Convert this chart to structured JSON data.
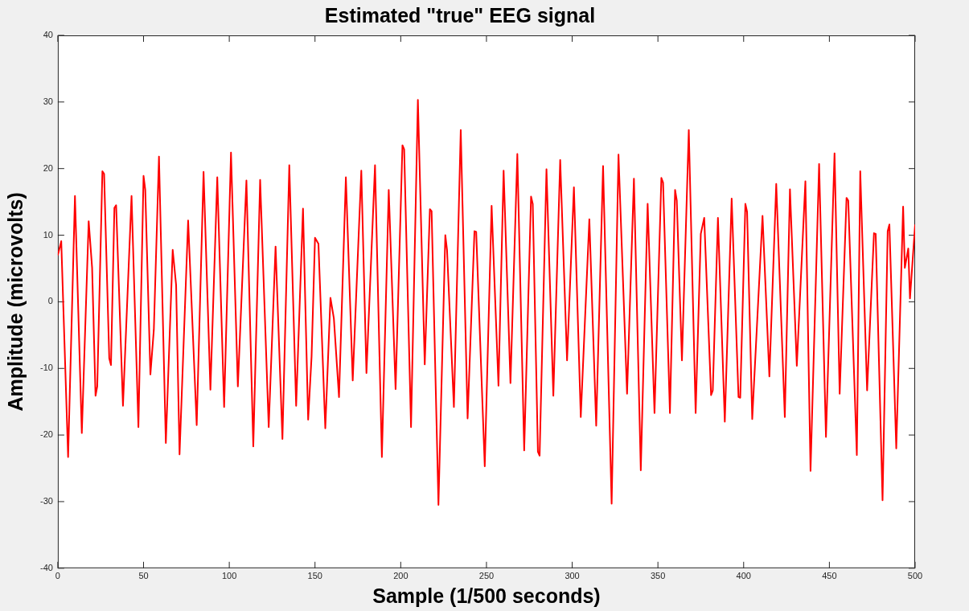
{
  "chart_data": {
    "type": "line",
    "title": "Estimated \"true\" EEG signal",
    "xlabel": "Sample (1/500 seconds)",
    "ylabel": "Amplitude (microvolts)",
    "xlim": [
      0,
      500
    ],
    "xticks": [
      0,
      50,
      100,
      150,
      200,
      250,
      300,
      350,
      400,
      450,
      500
    ],
    "ylim": [
      -40,
      40
    ],
    "yticks": [
      -40,
      -30,
      -20,
      -10,
      0,
      10,
      20,
      30,
      40
    ],
    "grid": false,
    "legend": false,
    "series": [
      {
        "color": "#ff0000",
        "x": [
          0,
          2,
          6,
          10,
          14,
          18,
          20,
          22,
          23,
          26,
          27,
          30,
          31,
          33,
          34,
          38,
          43,
          47,
          50,
          51,
          54,
          56,
          59,
          63,
          67,
          69,
          71,
          76,
          81,
          85,
          89,
          93,
          97,
          101,
          105,
          110,
          114,
          118,
          123,
          127,
          131,
          135,
          139,
          143,
          146,
          148,
          150,
          152,
          156,
          159,
          161,
          164,
          168,
          172,
          177,
          180,
          185,
          189,
          193,
          197,
          201,
          202,
          206,
          210,
          214,
          217,
          218,
          222,
          226,
          227,
          231,
          235,
          239,
          243,
          244,
          249,
          253,
          257,
          260,
          264,
          268,
          272,
          276,
          277,
          280,
          281,
          285,
          289,
          293,
          297,
          301,
          305,
          310,
          314,
          318,
          323,
          327,
          332,
          336,
          340,
          344,
          348,
          352,
          353,
          357,
          360,
          361,
          364,
          368,
          372,
          375,
          377,
          381,
          382,
          385,
          389,
          393,
          397,
          398,
          401,
          402,
          405,
          411,
          415,
          419,
          424,
          427,
          431,
          436,
          439,
          444,
          448,
          453,
          456,
          460,
          461,
          466,
          468,
          472,
          476,
          477,
          481,
          484,
          485,
          489,
          493,
          494,
          496,
          497,
          500
        ],
        "values": [
          7,
          9.1,
          -23.3,
          15.9,
          -19.7,
          12.1,
          5.1,
          -14.1,
          -12.7,
          19.6,
          19.2,
          -8.5,
          -9.5,
          14.1,
          14.5,
          -15.6,
          15.9,
          -18.8,
          18.9,
          16.8,
          -10.9,
          -4.2,
          21.8,
          -21.2,
          7.8,
          2.5,
          -22.9,
          12.2,
          -18.5,
          19.5,
          -13.2,
          18.7,
          -15.8,
          22.4,
          -12.7,
          18.2,
          -21.7,
          18.3,
          -18.8,
          8.3,
          -20.6,
          20.5,
          -15.6,
          14,
          -17.7,
          -8.2,
          9.6,
          8.7,
          -19,
          0.6,
          -2.5,
          -14.3,
          18.7,
          -11.8,
          19.7,
          -10.7,
          20.5,
          -23.3,
          16.8,
          -13.1,
          23.5,
          22.9,
          -18.8,
          30.3,
          -9.4,
          13.9,
          13.6,
          -30.5,
          10,
          7.8,
          -15.8,
          25.8,
          -17.5,
          10.6,
          10.5,
          -24.7,
          14.4,
          -12.6,
          19.7,
          -12.2,
          22.2,
          -22.3,
          15.8,
          14.7,
          -22.5,
          -23.1,
          19.9,
          -14.1,
          21.3,
          -8.8,
          17.2,
          -17.3,
          12.4,
          -18.6,
          20.4,
          -30.3,
          22.1,
          -13.8,
          18.5,
          -25.3,
          14.7,
          -16.7,
          18.6,
          17.9,
          -16.7,
          16.8,
          15.2,
          -8.8,
          25.8,
          -16.7,
          10.2,
          12.6,
          -14,
          -13.3,
          12.6,
          -18,
          15.5,
          -14.3,
          -14.4,
          14.7,
          13.5,
          -17.6,
          12.9,
          -11.2,
          17.7,
          -17.3,
          16.9,
          -9.6,
          18.1,
          -25.4,
          20.7,
          -20.3,
          22.3,
          -13.8,
          15.6,
          15.2,
          -23,
          19.6,
          -13.3,
          10.3,
          10.2,
          -29.8,
          10.6,
          11.6,
          -22,
          14.3,
          5.1,
          8,
          0.5,
          11.6
        ]
      }
    ]
  }
}
